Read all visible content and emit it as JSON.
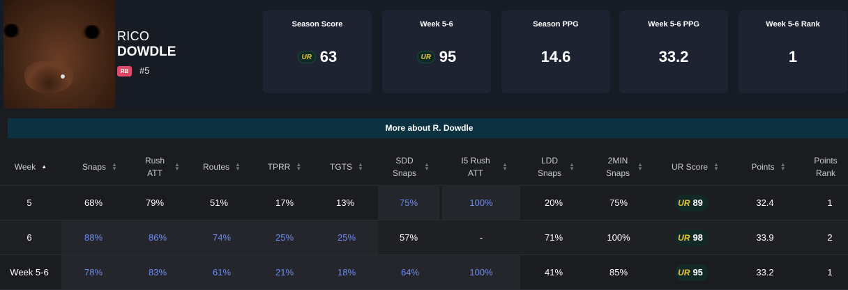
{
  "player": {
    "first_name": "RICO",
    "last_name": "DOWDLE",
    "position": "RB",
    "jersey": "#5"
  },
  "stat_cards": [
    {
      "label": "Season Score",
      "value": "63",
      "has_logo": true
    },
    {
      "label": "Week 5-6",
      "value": "95",
      "has_logo": true
    },
    {
      "label": "Season PPG",
      "value": "14.6",
      "has_logo": false
    },
    {
      "label": "Week 5-6 PPG",
      "value": "33.2",
      "has_logo": false
    },
    {
      "label": "Week 5-6 Rank",
      "value": "1",
      "has_logo": false
    }
  ],
  "logo_text": "UR",
  "more_button": "More about R. Dowdle",
  "table": {
    "columns": [
      "Week",
      "Snaps",
      "Rush ATT",
      "Routes",
      "TPRR",
      "TGTS",
      "SDD Snaps",
      "I5 Rush ATT",
      "LDD Snaps",
      "2MIN Snaps",
      "UR Score",
      "Points",
      "Points Rank"
    ],
    "rows": [
      [
        "5",
        "68%",
        "79%",
        "51%",
        "17%",
        "13%",
        "75%",
        "100%",
        "20%",
        "75%",
        "89",
        "32.4",
        "1"
      ],
      [
        "6",
        "88%",
        "86%",
        "74%",
        "25%",
        "25%",
        "57%",
        "-",
        "71%",
        "100%",
        "98",
        "33.9",
        "2"
      ],
      [
        "Week 5-6",
        "78%",
        "83%",
        "61%",
        "21%",
        "18%",
        "64%",
        "100%",
        "41%",
        "85%",
        "95",
        "33.2",
        "1"
      ]
    ]
  },
  "colors": {
    "highlight_blue": "#6d8cf5",
    "badge_pink": "#e04a66",
    "logo_gold": "#e6c53a",
    "banner_teal": "#0c3140"
  }
}
